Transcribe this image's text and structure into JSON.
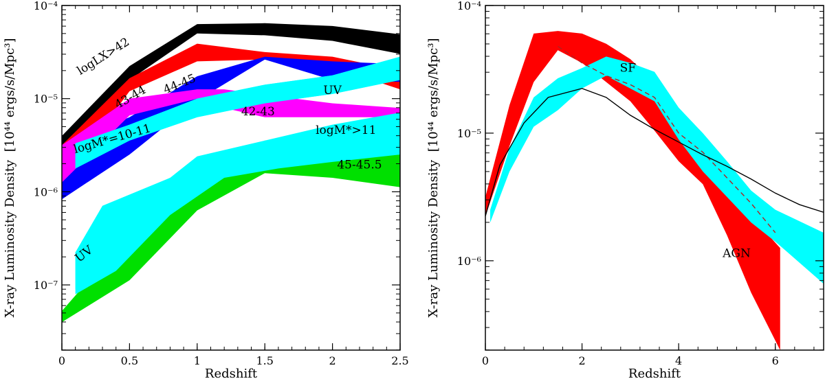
{
  "chart_data": [
    {
      "type": "area",
      "panel": "left",
      "xlabel": "Redshift",
      "ylabel": "X-ray Luminosity Density",
      "ylabel_unit": "[10⁴⁴ ergs/s/Mpc³]",
      "xlim": [
        0,
        2.5
      ],
      "ylim_log10": [
        -7.7,
        -4
      ],
      "xticks": [
        0,
        0.5,
        1,
        1.5,
        2,
        2.5
      ],
      "xtick_labels": [
        "0",
        "0.5",
        "1",
        "1.5",
        "2",
        "2.5"
      ],
      "yticks_log10": [
        -7,
        -6,
        -5,
        -4
      ],
      "ytick_labels": [
        "10⁻⁷",
        "10⁻⁶",
        "10⁻⁵",
        "10⁻⁴"
      ],
      "series": [
        {
          "name": "logLx>42",
          "label": "logLX>42",
          "color": "#000000",
          "x": [
            0,
            0.5,
            1,
            1.5,
            2,
            2.5
          ],
          "low": [
            -5.5,
            -4.8,
            -4.3,
            -4.32,
            -4.38,
            -4.52
          ],
          "high": [
            -5.4,
            -4.65,
            -4.2,
            -4.19,
            -4.22,
            -4.31
          ],
          "label_pos": [
            0.32,
            -4.58
          ],
          "label_angle": -32
        },
        {
          "name": "43-44",
          "label": "43-44",
          "color": "#ff0000",
          "x": [
            0,
            0.5,
            1,
            1.5,
            2,
            2.5
          ],
          "low": [
            -5.9,
            -4.92,
            -4.6,
            -4.58,
            -4.66,
            -4.9
          ],
          "high": [
            -5.5,
            -4.78,
            -4.41,
            -4.5,
            -4.55,
            -4.7
          ],
          "label_pos": [
            0.52,
            -5.02
          ],
          "label_angle": -30
        },
        {
          "name": "44-45",
          "label": "44-45",
          "color": "#0000ff",
          "x": [
            0,
            0.5,
            1,
            1.5,
            2,
            2.5
          ],
          "low": [
            -6.08,
            -5.6,
            -5.02,
            -4.58,
            -4.8,
            -4.82
          ],
          "high": [
            -5.5,
            -5.2,
            -4.76,
            -4.55,
            -4.6,
            -4.63
          ],
          "label_pos": [
            0.88,
            -4.88
          ],
          "label_angle": -22
        },
        {
          "name": "42-43",
          "label": "42-43",
          "color": "#ff00ff",
          "x": [
            0,
            0.5,
            1,
            1.2,
            1.5,
            2,
            2.5
          ],
          "low": [
            -5.9,
            -5.18,
            -5.0,
            -5.1,
            -5.2,
            -5.2,
            -5.2
          ],
          "high": [
            -5.5,
            -5.0,
            -4.9,
            -4.9,
            -4.96,
            -5.05,
            -5.1
          ],
          "label_pos": [
            1.45,
            -5.18
          ],
          "label_angle": 0
        },
        {
          "name": "UV",
          "label": "UV",
          "color": "#00ffff",
          "x": [
            0.1,
            0.5,
            1,
            1.5,
            2,
            2.5
          ],
          "low": [
            -5.75,
            -5.45,
            -5.2,
            -5.05,
            -4.95,
            -4.8
          ],
          "high": [
            -5.48,
            -5.28,
            -5.0,
            -4.85,
            -4.75,
            -4.55
          ],
          "label_pos": [
            2.0,
            -4.95
          ],
          "label_angle": 0
        },
        {
          "name": "logM*=10-11",
          "label": "logM*=10-11",
          "color": "#00ffff",
          "x": [
            0.1,
            0.5,
            1,
            1.5,
            2,
            2.5
          ],
          "low": [
            -5.75,
            -5.45,
            -5.2,
            -5.05,
            -4.95,
            -4.8
          ],
          "high": [
            -5.48,
            -5.28,
            -5.0,
            -4.85,
            -4.75,
            -4.55
          ],
          "label_pos": [
            0.38,
            -5.47
          ],
          "label_angle": -16
        },
        {
          "name": "45-45.5",
          "label": "45-45.5",
          "color": "#00e000",
          "x": [
            0,
            0.5,
            1,
            1.5,
            2,
            2.5
          ],
          "low": [
            -7.4,
            -6.95,
            -6.2,
            -5.8,
            -5.85,
            -5.95
          ],
          "high": [
            -7.28,
            -6.45,
            -5.88,
            -5.45,
            -5.4,
            -5.4
          ],
          "label_pos": [
            2.2,
            -5.75
          ],
          "label_angle": 0
        },
        {
          "name": "logM*>11",
          "label": "logM*>11",
          "color": "#00ffff",
          "x": [
            0.1,
            0.3,
            0.8,
            1,
            1.5,
            2,
            2.5
          ],
          "low": [
            -7.05,
            -6.7,
            -6.0,
            -5.8,
            -5.65,
            -5.55,
            -5.45
          ],
          "high": [
            -6.65,
            -6.15,
            -5.85,
            -5.62,
            -5.45,
            -5.28,
            -5.15
          ],
          "label_pos": [
            2.1,
            -5.38
          ],
          "label_angle": 0
        },
        {
          "name": "UV (low)",
          "label": "UV",
          "color": "#00ffff",
          "x": [
            0.1,
            0.4,
            0.8,
            1.2,
            1.6,
            2.0,
            2.5
          ],
          "low": [
            -7.1,
            -6.85,
            -6.25,
            -5.85,
            -5.75,
            -5.68,
            -5.6
          ],
          "high": [
            -6.65,
            -6.15,
            -5.85,
            -5.6,
            -5.55,
            -5.5,
            -5.42
          ],
          "label_pos": [
            0.18,
            -6.7
          ],
          "label_angle": -38
        }
      ]
    },
    {
      "type": "area",
      "panel": "right",
      "xlabel": "Redshift",
      "ylabel": "X-ray Luminosity Density",
      "ylabel_unit": "[10⁴⁴ ergs/s/Mpc³]",
      "xlim": [
        0,
        7
      ],
      "ylim_log10": [
        -6.7,
        -4
      ],
      "xticks": [
        0,
        2,
        4,
        6
      ],
      "xtick_labels": [
        "0",
        "2",
        "4",
        "6"
      ],
      "yticks_log10": [
        -6,
        -5,
        -4
      ],
      "ytick_labels": [
        "10⁻⁶",
        "10⁻⁵",
        "10⁻⁴"
      ],
      "series": [
        {
          "name": "AGN",
          "label": "AGN",
          "color": "#ff0000",
          "x": [
            0,
            0.5,
            1,
            1.5,
            2,
            2.5,
            3,
            3.5,
            4,
            4.5,
            5,
            5.5,
            6.1
          ],
          "low": [
            -5.65,
            -5.1,
            -4.6,
            -4.35,
            -4.45,
            -4.6,
            -4.75,
            -4.98,
            -5.22,
            -5.4,
            -5.8,
            -6.25,
            -6.7
          ],
          "high": [
            -5.5,
            -4.78,
            -4.22,
            -4.2,
            -4.22,
            -4.3,
            -4.42,
            -4.6,
            -4.95,
            -5.15,
            -5.4,
            -5.65,
            -5.9
          ],
          "label_pos": [
            5.2,
            -5.97
          ],
          "label_angle": 0
        },
        {
          "name": "SF",
          "label": "SF",
          "color": "#00ffff",
          "x": [
            0.1,
            0.5,
            1,
            1.5,
            2,
            2.5,
            3,
            3.5,
            4,
            4.5,
            5,
            5.5,
            6,
            7
          ],
          "low": [
            -5.7,
            -5.3,
            -4.95,
            -4.82,
            -4.65,
            -4.55,
            -4.65,
            -4.75,
            -5.05,
            -5.3,
            -5.5,
            -5.7,
            -5.85,
            -6.18
          ],
          "high": [
            -5.6,
            -5.12,
            -4.72,
            -4.57,
            -4.49,
            -4.4,
            -4.45,
            -4.52,
            -4.8,
            -5.0,
            -5.22,
            -5.45,
            -5.6,
            -5.78
          ],
          "label_pos": [
            2.95,
            -4.52
          ],
          "label_angle": 0
        },
        {
          "name": "dashed",
          "style": "dashed",
          "color": "#b02020",
          "x": [
            1.5,
            2,
            2.5,
            3,
            3.5,
            4,
            4.5,
            5,
            5.5,
            6
          ],
          "y": [
            -4.32,
            -4.45,
            -4.55,
            -4.62,
            -4.72,
            -5.0,
            -5.15,
            -5.35,
            -5.55,
            -5.78
          ]
        },
        {
          "name": "solid",
          "style": "solid",
          "color": "#000000",
          "x": [
            0,
            0.3,
            0.8,
            1.3,
            2,
            2.5,
            3,
            3.5,
            4,
            4.5,
            5,
            5.5,
            6,
            6.5,
            7
          ],
          "y": [
            -5.65,
            -5.25,
            -4.92,
            -4.72,
            -4.65,
            -4.72,
            -4.86,
            -4.97,
            -5.07,
            -5.17,
            -5.26,
            -5.36,
            -5.47,
            -5.56,
            -5.62
          ]
        }
      ]
    }
  ]
}
